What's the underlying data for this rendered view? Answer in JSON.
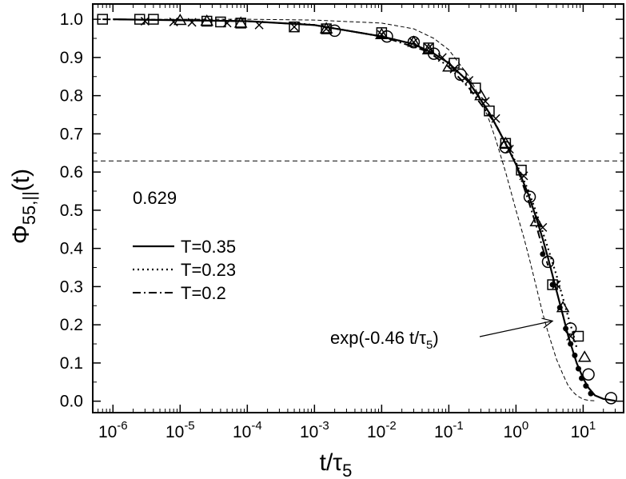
{
  "chart_data": {
    "type": "line",
    "xscale": "log",
    "xlim": [
      5e-07,
      40
    ],
    "ylim": [
      -0.03,
      1.04
    ],
    "grid": false,
    "legend_placement": "center-left",
    "xlabel_main": "t/τ",
    "xlabel_sub": "5",
    "ylabel_main": "Φ",
    "ylabel_sub": "55,||",
    "ylabel_suffix": "(t)",
    "x_ticks": [
      {
        "exp": -6,
        "base": "10",
        "sup": "-6"
      },
      {
        "exp": -5,
        "base": "10",
        "sup": "-5"
      },
      {
        "exp": -4,
        "base": "10",
        "sup": "-4"
      },
      {
        "exp": -3,
        "base": "10",
        "sup": "-3"
      },
      {
        "exp": -2,
        "base": "10",
        "sup": "-2"
      },
      {
        "exp": -1,
        "base": "10",
        "sup": "-1"
      },
      {
        "exp": 0,
        "base": "10",
        "sup": "0"
      },
      {
        "exp": 1,
        "base": "10",
        "sup": "1"
      }
    ],
    "y_ticks": [
      {
        "value": 0.0,
        "label": "0.0"
      },
      {
        "value": 0.1,
        "label": "0.1"
      },
      {
        "value": 0.2,
        "label": "0.2"
      },
      {
        "value": 0.3,
        "label": "0.3"
      },
      {
        "value": 0.4,
        "label": "0.4"
      },
      {
        "value": 0.5,
        "label": "0.5"
      },
      {
        "value": 0.6,
        "label": "0.6"
      },
      {
        "value": 0.7,
        "label": "0.7"
      },
      {
        "value": 0.8,
        "label": "0.8"
      },
      {
        "value": 0.9,
        "label": "0.9"
      },
      {
        "value": 1.0,
        "label": "1.0"
      }
    ],
    "reference_line": {
      "y": 0.629,
      "label": "0.629",
      "style": "dashed"
    },
    "annotation": {
      "text_main": "exp(-0.46 t/τ",
      "text_sub": "5",
      "text_end": ")",
      "points_to": {
        "x": 3.5,
        "y": 0.21
      }
    },
    "series": [
      {
        "name": "T=0.35",
        "style": "solid",
        "x": [
          1e-06,
          0.0001,
          0.001,
          0.01,
          0.03,
          0.06,
          0.1,
          0.2,
          0.4,
          0.7,
          1.0,
          1.5,
          2.0,
          2.5,
          3.0,
          4.0,
          5.0,
          6.0,
          8.0,
          10.0,
          12.0,
          15.0,
          20.0,
          30.0
        ],
        "y": [
          1.0,
          0.995,
          0.985,
          0.955,
          0.935,
          0.91,
          0.885,
          0.835,
          0.755,
          0.675,
          0.62,
          0.545,
          0.48,
          0.425,
          0.375,
          0.29,
          0.225,
          0.17,
          0.1,
          0.06,
          0.035,
          0.015,
          0.006,
          0.001
        ]
      },
      {
        "name": "T=0.23",
        "style": "dotted",
        "x": [
          0.0005,
          0.001,
          0.01,
          0.03,
          0.06,
          0.1,
          0.2,
          0.4,
          0.7,
          1.0,
          1.5,
          2.0,
          3.0,
          4.0,
          5.0,
          6.0,
          7.0,
          8.0
        ],
        "y": [
          0.99,
          0.985,
          0.955,
          0.935,
          0.91,
          0.885,
          0.835,
          0.755,
          0.675,
          0.625,
          0.555,
          0.495,
          0.4,
          0.33,
          0.27,
          0.22,
          0.18,
          0.14
        ]
      },
      {
        "name": "T=0.2",
        "style": "dashdot",
        "x": [
          7e-07,
          1e-05,
          0.0001,
          0.001,
          0.01,
          0.05,
          0.1,
          0.2,
          0.5,
          1.0,
          1.5,
          2.0,
          2.5,
          3.0
        ],
        "y": [
          1.0,
          0.998,
          0.995,
          0.985,
          0.955,
          0.915,
          0.875,
          0.82,
          0.725,
          0.62,
          0.53,
          0.46,
          0.4,
          0.355
        ]
      },
      {
        "name": "exp(-0.46 t/τ5)",
        "style": "dashed-thin",
        "x": [
          1e-06,
          0.0001,
          0.001,
          0.01,
          0.03,
          0.06,
          0.1,
          0.2,
          0.3,
          0.4,
          0.5,
          0.7,
          1.0,
          1.3,
          1.6,
          2.0,
          2.5,
          3.0,
          4.0,
          5.0,
          6.0,
          7.0,
          8.0,
          10.0,
          12.0,
          15.0
        ],
        "y": [
          1.0,
          1.0,
          0.998,
          0.99,
          0.975,
          0.95,
          0.92,
          0.85,
          0.79,
          0.735,
          0.685,
          0.6,
          0.5,
          0.43,
          0.37,
          0.3,
          0.23,
          0.18,
          0.11,
          0.07,
          0.04,
          0.025,
          0.015,
          0.005,
          0.002,
          0.001
        ]
      }
    ],
    "markers": [
      {
        "symbol": "square",
        "x": [
          7e-07,
          2.5e-06,
          4e-06,
          2.5e-05,
          4e-05,
          8e-05,
          0.0005,
          0.0015,
          0.01,
          0.05,
          0.12,
          0.25,
          0.4,
          0.7,
          1.2,
          3.5,
          8.5
        ],
        "y": [
          1.0,
          1.0,
          1.0,
          0.995,
          0.993,
          0.99,
          0.98,
          0.975,
          0.965,
          0.925,
          0.885,
          0.82,
          0.76,
          0.675,
          0.605,
          0.305,
          0.17
        ]
      },
      {
        "symbol": "triangle",
        "x": [
          1e-05,
          2.5e-05,
          8e-05,
          0.0015,
          0.01,
          0.03,
          0.05,
          0.1,
          0.3,
          0.7,
          2.0,
          5.0,
          10.5
        ],
        "y": [
          0.997,
          0.995,
          0.99,
          0.975,
          0.96,
          0.94,
          0.92,
          0.875,
          0.8,
          0.675,
          0.47,
          0.245,
          0.115
        ]
      },
      {
        "symbol": "cross",
        "x": [
          3e-06,
          8e-06,
          1.5e-05,
          5e-05,
          0.00015,
          0.0005,
          0.0015,
          0.01,
          0.03,
          0.05,
          0.08,
          0.12,
          0.2,
          0.35,
          0.5,
          0.8,
          1.3,
          2.5,
          4.0,
          6.5
        ],
        "y": [
          0.995,
          0.993,
          0.992,
          0.99,
          0.985,
          0.98,
          0.975,
          0.96,
          0.94,
          0.925,
          0.9,
          0.87,
          0.84,
          0.785,
          0.74,
          0.66,
          0.59,
          0.455,
          0.305,
          0.17
        ]
      },
      {
        "symbol": "circle",
        "x": [
          0.002,
          0.012,
          0.03,
          0.06,
          0.15,
          0.7,
          1.6,
          3.0,
          6.5,
          12.0,
          26.0
        ],
        "y": [
          0.97,
          0.955,
          0.94,
          0.91,
          0.855,
          0.665,
          0.535,
          0.365,
          0.19,
          0.07,
          0.008
        ]
      },
      {
        "symbol": "dot",
        "x": [
          2.5,
          3.5,
          4.5,
          5.5,
          6.5,
          7.5,
          8.5,
          9.5,
          11.0,
          13.0
        ],
        "y": [
          0.385,
          0.305,
          0.245,
          0.19,
          0.15,
          0.12,
          0.085,
          0.06,
          0.04,
          0.02
        ]
      }
    ]
  }
}
